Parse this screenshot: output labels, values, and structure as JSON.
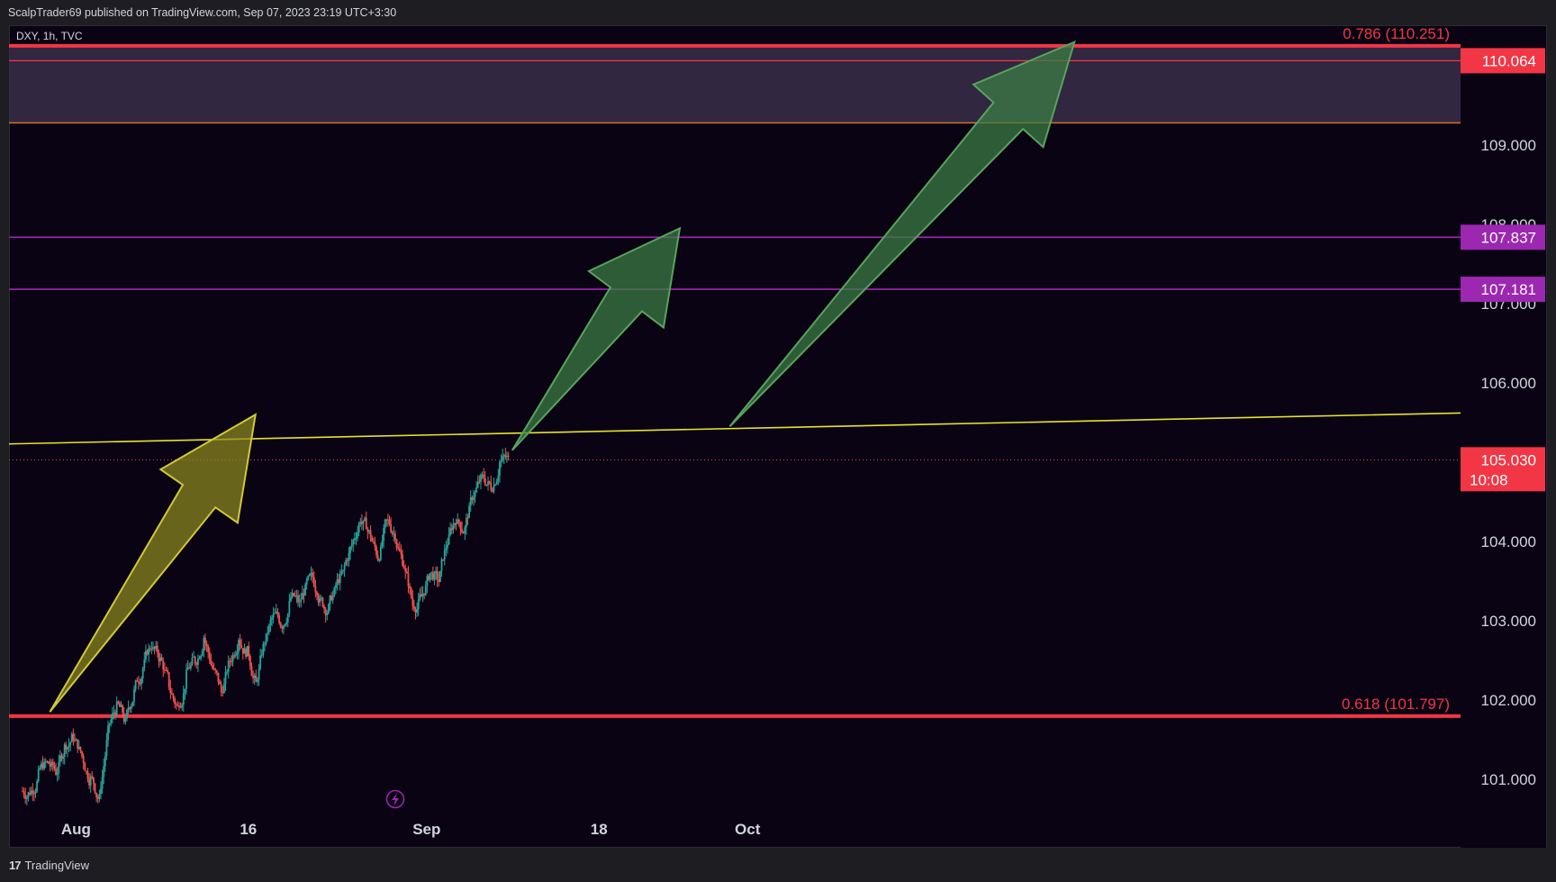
{
  "header": {
    "publish_line": "ScalpTrader69 published on TradingView.com, Sep 07, 2023 23:19 UTC+3:30"
  },
  "symbol": {
    "label": "DXY, 1h, TVC"
  },
  "footer": {
    "brand_mark": "17",
    "brand": "TradingView"
  },
  "colors": {
    "background": "#0a0313",
    "red_level": "#f23645",
    "purple_level": "#9c27b0",
    "yellow_trend": "#e6e22e",
    "yellow_arrow": "#8f8a1e",
    "green_arrow": "#3c7f44",
    "candle_up": "#26a69a",
    "candle_down": "#ef5350",
    "price_badge": "#f23645"
  },
  "icons": {
    "replay": "lightning-bolt-icon"
  },
  "chart_data": {
    "type": "candlestick",
    "symbol": "DXY",
    "timeframe": "1h",
    "source": "TVC",
    "x_ticks": [
      "Aug",
      "16",
      "Sep",
      "18",
      "Oct"
    ],
    "y_ticks": [
      "101.000",
      "102.000",
      "103.000",
      "104.000",
      "105.000",
      "106.000",
      "107.000",
      "108.000",
      "109.000"
    ],
    "ylim": [
      100.65,
      110.95
    ],
    "levels": [
      {
        "name": "fib-0786",
        "price": 110.251,
        "label": "0.786 (110.251)",
        "style": "thick-red"
      },
      {
        "name": "level-110064",
        "price": 110.064,
        "badge": "110.064",
        "style": "thin-red"
      },
      {
        "name": "zone-bottom",
        "price": 109.28,
        "style": "thin-orange"
      },
      {
        "name": "level-107837",
        "price": 107.837,
        "badge": "107.837",
        "style": "purple"
      },
      {
        "name": "level-107181",
        "price": 107.181,
        "badge": "107.181",
        "style": "purple"
      },
      {
        "name": "fib-0618",
        "price": 101.797,
        "label": "0.618 (101.797)",
        "style": "thick-red"
      }
    ],
    "current_price": {
      "price": 105.03,
      "value": "105.030",
      "countdown": "10:08"
    },
    "price_series": [
      100.85,
      101.05,
      101.2,
      101.1,
      101.4,
      101.55,
      101.3,
      101.0,
      100.75,
      101.6,
      101.9,
      101.7,
      102.1,
      102.4,
      102.7,
      102.5,
      102.2,
      101.9,
      102.3,
      102.5,
      102.8,
      102.4,
      102.1,
      102.5,
      102.8,
      102.6,
      102.2,
      102.75,
      103.05,
      102.95,
      103.3,
      103.2,
      103.5,
      103.4,
      103.15,
      103.35,
      103.6,
      103.95,
      104.3,
      104.1,
      103.8,
      104.25,
      104.1,
      103.7,
      103.2,
      103.3,
      103.6,
      103.5,
      104.0,
      104.3,
      104.15,
      104.6,
      104.8,
      104.7,
      105.0,
      105.03
    ],
    "series_start_day": "Jul 28",
    "series_end_day": "Sep 07",
    "trendline": {
      "start": {
        "day": 0,
        "price": 105.23
      },
      "end": {
        "day": 98,
        "price": 105.62
      }
    },
    "arrows": [
      {
        "name": "yellow-arrow",
        "color": "yellow",
        "from": {
          "day": 2.3,
          "price": 101.85
        },
        "to": {
          "day": 19.6,
          "price": 105.6
        }
      },
      {
        "name": "green-arrow-1",
        "color": "green",
        "from": {
          "day": 41.2,
          "price": 105.15
        },
        "to": {
          "day": 55.3,
          "price": 107.95
        }
      },
      {
        "name": "green-arrow-2",
        "color": "green",
        "from": {
          "day": 59.5,
          "price": 105.45
        },
        "to": {
          "day": 88.5,
          "price": 110.3
        }
      }
    ]
  }
}
